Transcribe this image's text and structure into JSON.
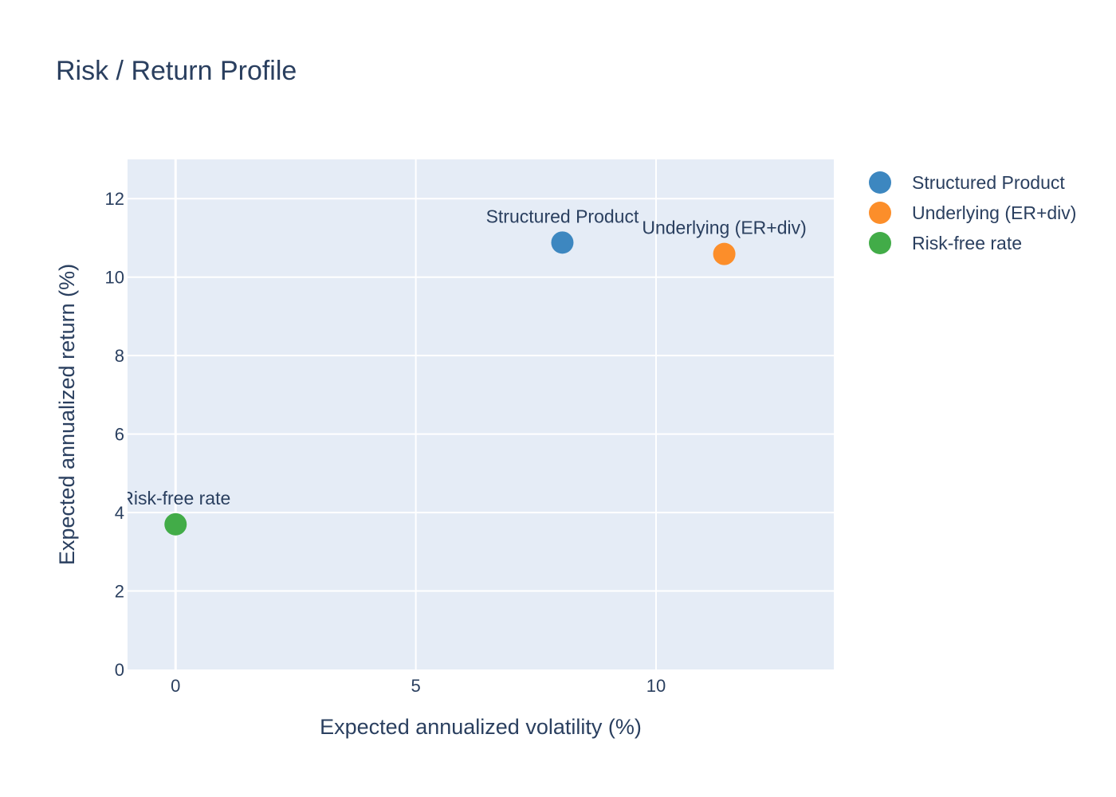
{
  "chart_data": {
    "type": "scatter",
    "title": "Risk / Return Profile",
    "xlabel": "Expected annualized volatility (%)",
    "ylabel": "Expected annualized return (%)",
    "xlim": [
      -1.0,
      13.7
    ],
    "ylim": [
      0,
      13
    ],
    "xticks": [
      0,
      5,
      10
    ],
    "yticks": [
      0,
      2,
      4,
      6,
      8,
      10,
      12
    ],
    "grid": true,
    "legend_position": "top-right, outside plot",
    "series": [
      {
        "name": "Structured Product",
        "x": [
          8.05
        ],
        "y": [
          10.88
        ],
        "label": "Structured Product",
        "color": "#3d87c0"
      },
      {
        "name": "Underlying (ER+div)",
        "x": [
          11.42
        ],
        "y": [
          10.59
        ],
        "label": "Underlying (ER+div)",
        "color": "#fc8e2a"
      },
      {
        "name": "Risk-free rate",
        "x": [
          0.0
        ],
        "y": [
          3.7
        ],
        "label": "Risk-free rate",
        "color": "#42ac48"
      }
    ]
  }
}
